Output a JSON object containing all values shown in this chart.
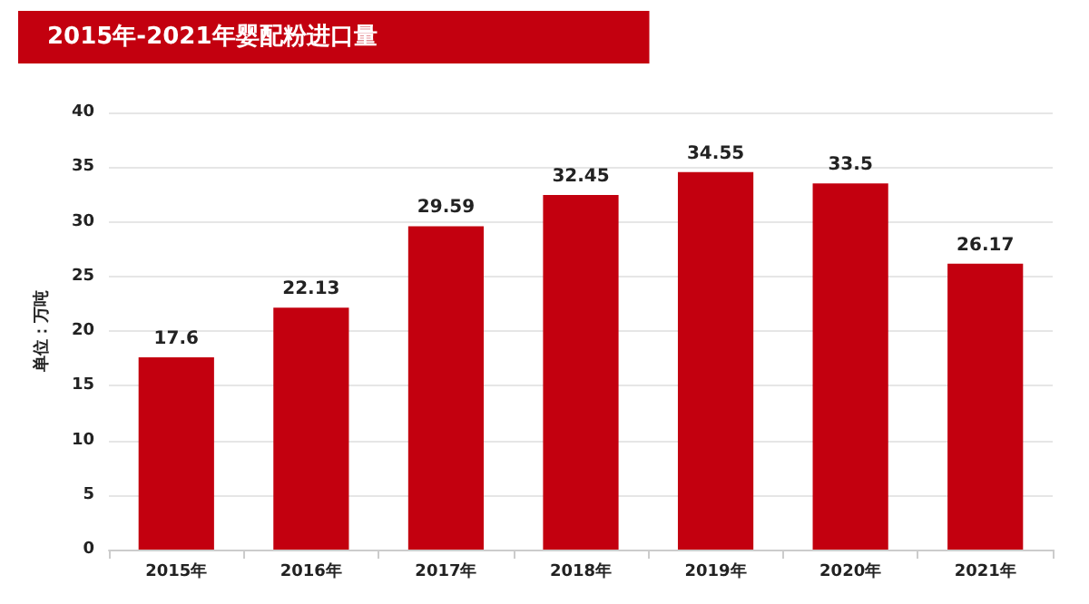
{
  "chart_data": {
    "type": "bar",
    "title": "2015年-2021年婴配粉进口量",
    "ylabel": "单位：万吨",
    "categories": [
      "2015年",
      "2016年",
      "2017年",
      "2018年",
      "2019年",
      "2020年",
      "2021年"
    ],
    "values": [
      17.6,
      22.13,
      29.59,
      32.45,
      34.55,
      33.5,
      26.17
    ],
    "color": "#c3000f",
    "ylim": [
      0,
      40
    ],
    "yticks": [
      0,
      5,
      10,
      15,
      20,
      25,
      30,
      35,
      40
    ],
    "grid": "y",
    "data_labels": true
  }
}
